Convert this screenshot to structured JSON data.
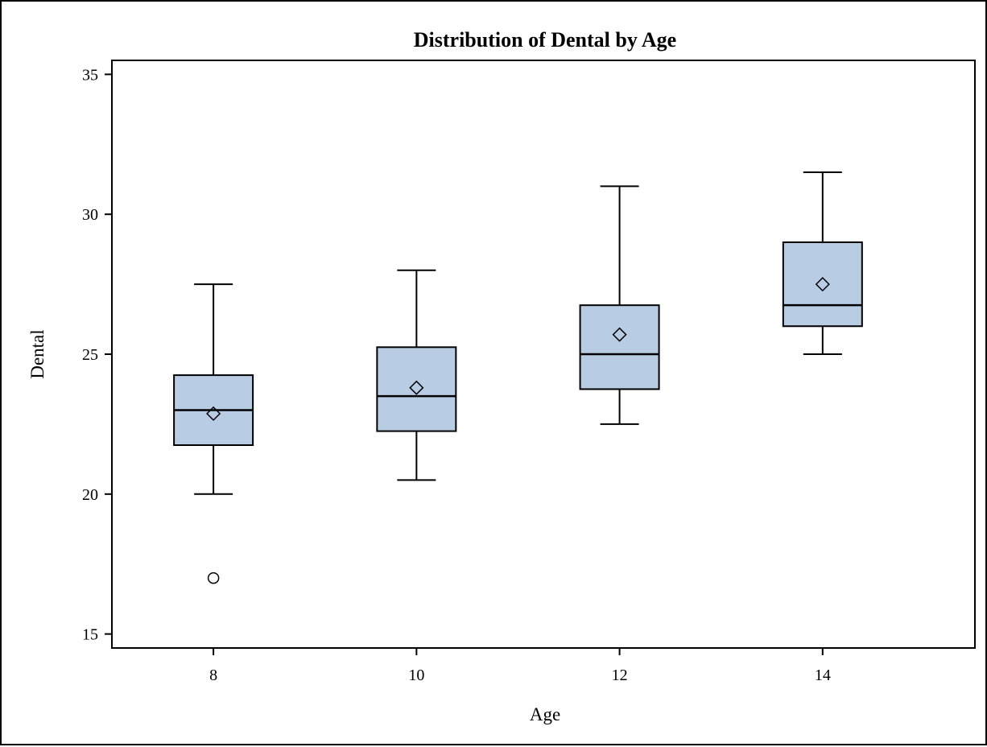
{
  "chart_data": {
    "type": "box",
    "title": "Distribution of Dental by Age",
    "xlabel": "Age",
    "ylabel": "Dental",
    "xlim": [
      7,
      15.5
    ],
    "ylim": [
      14.5,
      35.5
    ],
    "yticks": [
      15,
      20,
      25,
      30,
      35
    ],
    "categories": [
      "8",
      "10",
      "12",
      "14"
    ],
    "x": [
      8,
      10,
      12,
      14
    ],
    "boxes": [
      {
        "x": 8,
        "whisker_low": 20.0,
        "q1": 21.75,
        "median": 23.0,
        "q3": 24.25,
        "whisker_high": 27.5,
        "mean": 22.875,
        "outliers": [
          17.0
        ]
      },
      {
        "x": 10,
        "whisker_low": 20.5,
        "q1": 22.25,
        "median": 23.5,
        "q3": 25.25,
        "whisker_high": 28.0,
        "mean": 23.8,
        "outliers": []
      },
      {
        "x": 12,
        "whisker_low": 22.5,
        "q1": 23.75,
        "median": 25.0,
        "q3": 26.75,
        "whisker_high": 31.0,
        "mean": 25.7,
        "outliers": []
      },
      {
        "x": 14,
        "whisker_low": 25.0,
        "q1": 26.0,
        "median": 26.75,
        "q3": 29.0,
        "whisker_high": 31.5,
        "mean": 27.5,
        "outliers": []
      }
    ],
    "box_fill": "#b8cce4",
    "line_color": "#000000",
    "grid": false,
    "legend": "none"
  }
}
